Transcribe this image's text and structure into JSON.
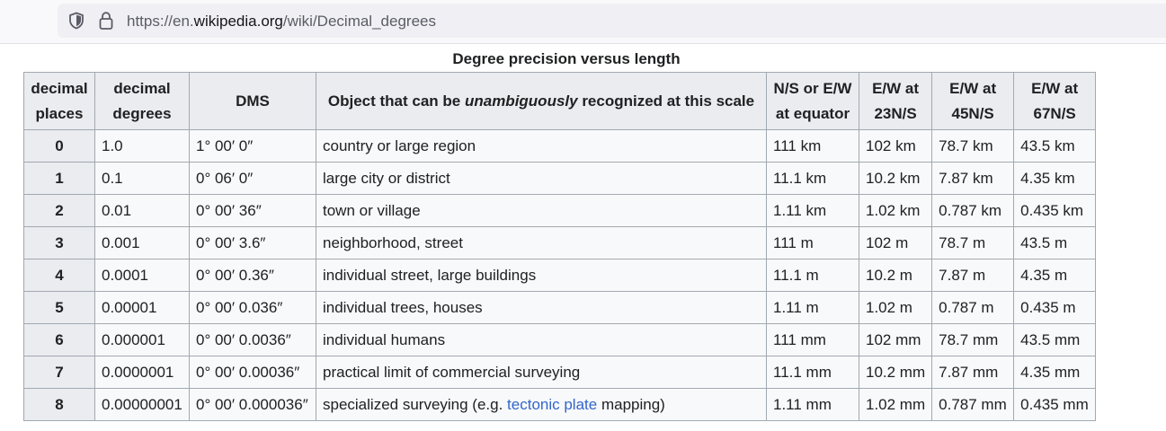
{
  "browser": {
    "url_prefix": "https://en.",
    "url_domain": "wikipedia.org",
    "url_path": "/wiki/Decimal_degrees"
  },
  "table": {
    "caption": "Degree precision versus length",
    "headers": [
      [
        "decimal",
        "places"
      ],
      [
        "decimal",
        "degrees"
      ],
      [
        "DMS"
      ],
      [
        "N/S or E/W",
        "at equator"
      ],
      [
        "E/W at",
        "23N/S"
      ],
      [
        "E/W at",
        "45N/S"
      ],
      [
        "E/W at",
        "67N/S"
      ]
    ],
    "object_header": {
      "before": "Object that can be ",
      "emphasis": "unambiguously",
      "after": " recognized at this scale"
    },
    "rows": [
      {
        "places": "0",
        "degrees": "1.0",
        "dms": "1° 00′ 0″",
        "object": "country or large region",
        "equator": "111 km",
        "ew23": "102 km",
        "ew45": "78.7 km",
        "ew67": "43.5 km"
      },
      {
        "places": "1",
        "degrees": "0.1",
        "dms": "0° 06′ 0″",
        "object": "large city or district",
        "equator": "11.1 km",
        "ew23": "10.2 km",
        "ew45": "7.87 km",
        "ew67": "4.35 km"
      },
      {
        "places": "2",
        "degrees": "0.01",
        "dms": "0° 00′ 36″",
        "object": "town or village",
        "equator": "1.11 km",
        "ew23": "1.02 km",
        "ew45": "0.787 km",
        "ew67": "0.435 km"
      },
      {
        "places": "3",
        "degrees": "0.001",
        "dms": "0° 00′ 3.6″",
        "object": "neighborhood, street",
        "equator": "111 m",
        "ew23": "102 m",
        "ew45": "78.7 m",
        "ew67": "43.5 m"
      },
      {
        "places": "4",
        "degrees": "0.0001",
        "dms": "0° 00′ 0.36″",
        "object": "individual street, large buildings",
        "equator": "11.1 m",
        "ew23": "10.2 m",
        "ew45": "7.87 m",
        "ew67": "4.35 m"
      },
      {
        "places": "5",
        "degrees": "0.00001",
        "dms": "0° 00′ 0.036″",
        "object": "individual trees, houses",
        "equator": "1.11 m",
        "ew23": "1.02 m",
        "ew45": "0.787 m",
        "ew67": "0.435 m"
      },
      {
        "places": "6",
        "degrees": "0.000001",
        "dms": "0° 00′ 0.0036″",
        "object": "individual humans",
        "equator": "111 mm",
        "ew23": "102 mm",
        "ew45": "78.7 mm",
        "ew67": "43.5 mm"
      },
      {
        "places": "7",
        "degrees": "0.0000001",
        "dms": "0° 00′ 0.00036″",
        "object": "practical limit of commercial surveying",
        "equator": "11.1 mm",
        "ew23": "10.2 mm",
        "ew45": "7.87 mm",
        "ew67": "4.35 mm"
      },
      {
        "places": "8",
        "degrees": "0.00000001",
        "dms": "0° 00′ 0.000036″",
        "object": "specialized surveying (e.g. ",
        "object_link": "tectonic plate",
        "object_after": " mapping)",
        "equator": "1.11 mm",
        "ew23": "1.02 mm",
        "ew45": "0.787 mm",
        "ew67": "0.435 mm"
      }
    ]
  },
  "colors": {
    "link": "#3366cc",
    "header_bg": "#eaecf0",
    "cell_bg": "#f8f9fa",
    "border": "#a2a9b1"
  },
  "icons": [
    "shield-icon",
    "lock-icon"
  ]
}
